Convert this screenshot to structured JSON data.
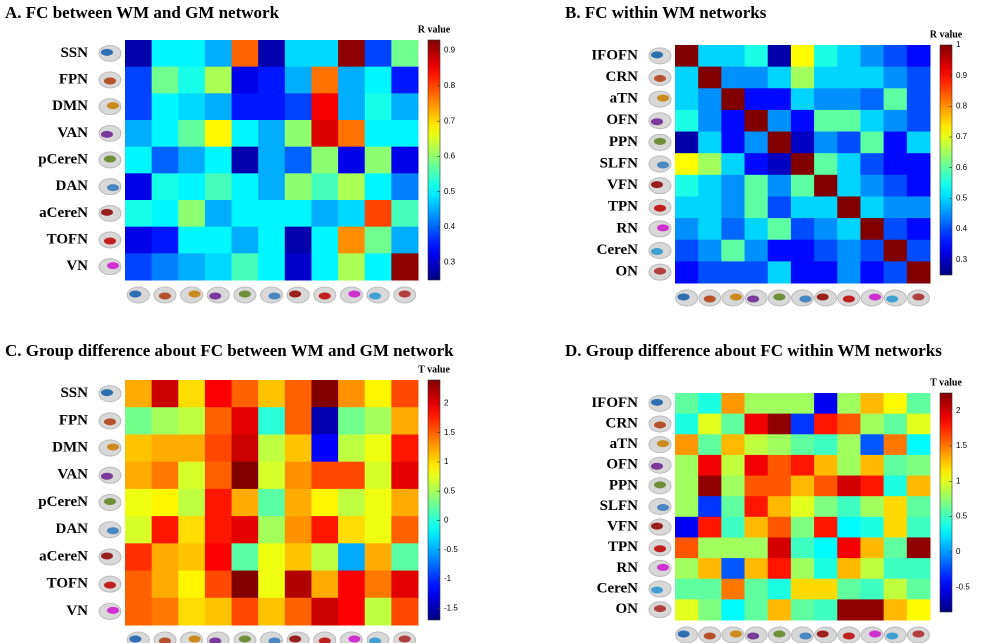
{
  "chart_data": [
    {
      "type": "heatmap",
      "title": "A. FC between WM and GM network",
      "colormap": "jet",
      "rows": [
        "SSN",
        "FPN",
        "DMN",
        "VAN",
        "pCereN",
        "DAN",
        "aCereN",
        "TOFN",
        "VN"
      ],
      "colorbar_label": "R value",
      "colorbar_lim": [
        0.25,
        0.93
      ],
      "colorbar_ticks": [
        0.3,
        0.4,
        0.5,
        0.6,
        0.7,
        0.8,
        0.9
      ],
      "matrix": [
        [
          0.28,
          0.5,
          0.5,
          0.45,
          0.78,
          0.28,
          0.48,
          0.48,
          0.92,
          0.38,
          0.58
        ],
        [
          0.38,
          0.58,
          0.52,
          0.62,
          0.32,
          0.35,
          0.45,
          0.77,
          0.45,
          0.5,
          0.35
        ],
        [
          0.38,
          0.5,
          0.48,
          0.45,
          0.35,
          0.35,
          0.38,
          0.85,
          0.45,
          0.52,
          0.45
        ],
        [
          0.45,
          0.5,
          0.57,
          0.68,
          0.5,
          0.45,
          0.6,
          0.87,
          0.77,
          0.5,
          0.5
        ],
        [
          0.5,
          0.4,
          0.45,
          0.5,
          0.28,
          0.45,
          0.4,
          0.6,
          0.32,
          0.6,
          0.32
        ],
        [
          0.32,
          0.52,
          0.5,
          0.55,
          0.5,
          0.45,
          0.6,
          0.55,
          0.62,
          0.5,
          0.42
        ],
        [
          0.52,
          0.5,
          0.6,
          0.45,
          0.5,
          0.5,
          0.5,
          0.45,
          0.48,
          0.8,
          0.55
        ],
        [
          0.32,
          0.35,
          0.5,
          0.5,
          0.45,
          0.5,
          0.28,
          0.5,
          0.75,
          0.58,
          0.45
        ],
        [
          0.38,
          0.42,
          0.45,
          0.48,
          0.55,
          0.5,
          0.3,
          0.5,
          0.62,
          0.5,
          0.92
        ]
      ]
    },
    {
      "type": "heatmap",
      "title": "B. FC within WM networks",
      "colormap": "jet",
      "rows": [
        "IFOFN",
        "CRN",
        "aTN",
        "OFN",
        "PPN",
        "SLFN",
        "VFN",
        "TPN",
        "RN",
        "CereN",
        "ON"
      ],
      "colorbar_label": "R value",
      "colorbar_lim": [
        0.25,
        1
      ],
      "colorbar_ticks": [
        0.3,
        0.4,
        0.5,
        0.6,
        0.7,
        0.8,
        0.9,
        1
      ],
      "matrix": [
        [
          1,
          0.5,
          0.5,
          0.55,
          0.28,
          0.72,
          0.55,
          0.5,
          0.45,
          0.4,
          0.35
        ],
        [
          0.5,
          1,
          0.45,
          0.45,
          0.5,
          0.65,
          0.5,
          0.5,
          0.5,
          0.45,
          0.4
        ],
        [
          0.5,
          0.45,
          1,
          0.35,
          0.35,
          0.5,
          0.45,
          0.45,
          0.42,
          0.6,
          0.4
        ],
        [
          0.55,
          0.45,
          0.35,
          1,
          0.45,
          0.35,
          0.6,
          0.6,
          0.5,
          0.45,
          0.4
        ],
        [
          0.28,
          0.5,
          0.35,
          0.45,
          1,
          0.3,
          0.45,
          0.4,
          0.6,
          0.35,
          0.5
        ],
        [
          0.72,
          0.65,
          0.5,
          0.35,
          0.3,
          1,
          0.6,
          0.5,
          0.4,
          0.35,
          0.35
        ],
        [
          0.55,
          0.5,
          0.45,
          0.6,
          0.45,
          0.6,
          1,
          0.5,
          0.45,
          0.4,
          0.35
        ],
        [
          0.5,
          0.5,
          0.45,
          0.6,
          0.4,
          0.5,
          0.5,
          1,
          0.5,
          0.45,
          0.45
        ],
        [
          0.45,
          0.5,
          0.42,
          0.5,
          0.6,
          0.4,
          0.45,
          0.5,
          1,
          0.4,
          0.35
        ],
        [
          0.4,
          0.45,
          0.6,
          0.45,
          0.35,
          0.35,
          0.4,
          0.45,
          0.4,
          1,
          0.4
        ],
        [
          0.35,
          0.4,
          0.4,
          0.4,
          0.5,
          0.35,
          0.35,
          0.45,
          0.35,
          0.4,
          1
        ]
      ]
    },
    {
      "type": "heatmap",
      "title": "C. Group difference about FC between WM and GM network",
      "colormap": "jet",
      "rows": [
        "SSN",
        "FPN",
        "DMN",
        "VAN",
        "pCereN",
        "DAN",
        "aCereN",
        "TOFN",
        "VN"
      ],
      "colorbar_label": "T value",
      "colorbar_lim": [
        -1.7,
        2.4
      ],
      "colorbar_ticks": [
        -1.5,
        -1,
        -0.5,
        0,
        0.5,
        1,
        1.5,
        2
      ],
      "matrix": [
        [
          1.2,
          2.1,
          1.0,
          1.9,
          1.5,
          1.1,
          1.5,
          2.4,
          1.3,
          0.9,
          1.6
        ],
        [
          0.3,
          0.5,
          0.6,
          1.5,
          2.0,
          0.0,
          1.5,
          -1.5,
          0.3,
          0.5,
          1.2
        ],
        [
          1.1,
          1.2,
          1.2,
          1.6,
          2.1,
          0.6,
          1.1,
          -1.2,
          0.6,
          0.8,
          1.8
        ],
        [
          1.2,
          1.4,
          0.7,
          1.5,
          2.4,
          0.7,
          1.3,
          1.6,
          1.6,
          0.7,
          2.0
        ],
        [
          0.8,
          0.9,
          0.6,
          1.8,
          1.2,
          0.2,
          1.2,
          0.9,
          0.6,
          0.8,
          1.2
        ],
        [
          0.7,
          1.8,
          1.0,
          1.8,
          2.0,
          0.5,
          1.3,
          1.8,
          1.0,
          0.8,
          1.5
        ],
        [
          1.7,
          1.2,
          1.1,
          1.9,
          0.2,
          0.8,
          1.1,
          0.6,
          -0.5,
          1.2,
          0.2
        ],
        [
          1.5,
          1.2,
          0.9,
          1.6,
          2.4,
          0.8,
          2.2,
          1.2,
          1.9,
          1.4,
          2.0
        ],
        [
          1.5,
          1.4,
          1.0,
          1.1,
          1.6,
          1.1,
          1.5,
          2.1,
          1.9,
          0.6,
          1.6
        ]
      ]
    },
    {
      "type": "heatmap",
      "title": "D. Group difference about FC within WM networks",
      "colormap": "jet",
      "rows": [
        "IFOFN",
        "CRN",
        "aTN",
        "OFN",
        "PPN",
        "SLFN",
        "VFN",
        "TPN",
        "RN",
        "CereN",
        "ON"
      ],
      "colorbar_label": "T value",
      "colorbar_lim": [
        -0.85,
        2.25
      ],
      "colorbar_ticks": [
        -0.5,
        0,
        0.5,
        1,
        1.5,
        2
      ],
      "matrix": [
        [
          0.6,
          0.4,
          1.4,
          0.8,
          0.8,
          0.8,
          -0.5,
          0.8,
          1.3,
          1.1,
          0.6
        ],
        [
          0.4,
          1.0,
          0.6,
          1.9,
          2.2,
          -0.3,
          1.8,
          1.6,
          0.8,
          0.6,
          1.0
        ],
        [
          1.4,
          0.6,
          1.3,
          0.9,
          0.8,
          0.6,
          0.5,
          0.8,
          -0.2,
          1.5,
          0.3
        ],
        [
          0.8,
          1.9,
          0.9,
          1.9,
          1.6,
          1.8,
          1.3,
          0.8,
          1.3,
          0.6,
          0.7
        ],
        [
          0.8,
          2.2,
          0.8,
          1.6,
          1.6,
          1.3,
          1.6,
          2.0,
          1.8,
          0.4,
          1.3
        ],
        [
          0.8,
          -0.3,
          0.6,
          1.8,
          1.3,
          1.0,
          0.7,
          0.5,
          0.8,
          1.2,
          0.6
        ],
        [
          -0.5,
          1.8,
          0.5,
          1.3,
          1.6,
          0.7,
          1.8,
          0.3,
          0.4,
          1.2,
          0.5
        ],
        [
          1.6,
          0.8,
          0.8,
          0.8,
          2.0,
          0.5,
          0.3,
          1.9,
          1.3,
          0.6,
          2.2
        ],
        [
          0.8,
          1.3,
          -0.2,
          1.3,
          1.8,
          0.8,
          0.4,
          1.3,
          0.9,
          0.5,
          0.5
        ],
        [
          0.6,
          0.6,
          1.5,
          0.6,
          0.4,
          1.2,
          1.2,
          0.6,
          0.5,
          0.9,
          0.6
        ],
        [
          1.0,
          0.7,
          0.3,
          0.6,
          1.3,
          0.6,
          0.5,
          2.2,
          2.2,
          1.3,
          1.1
        ]
      ]
    }
  ]
}
